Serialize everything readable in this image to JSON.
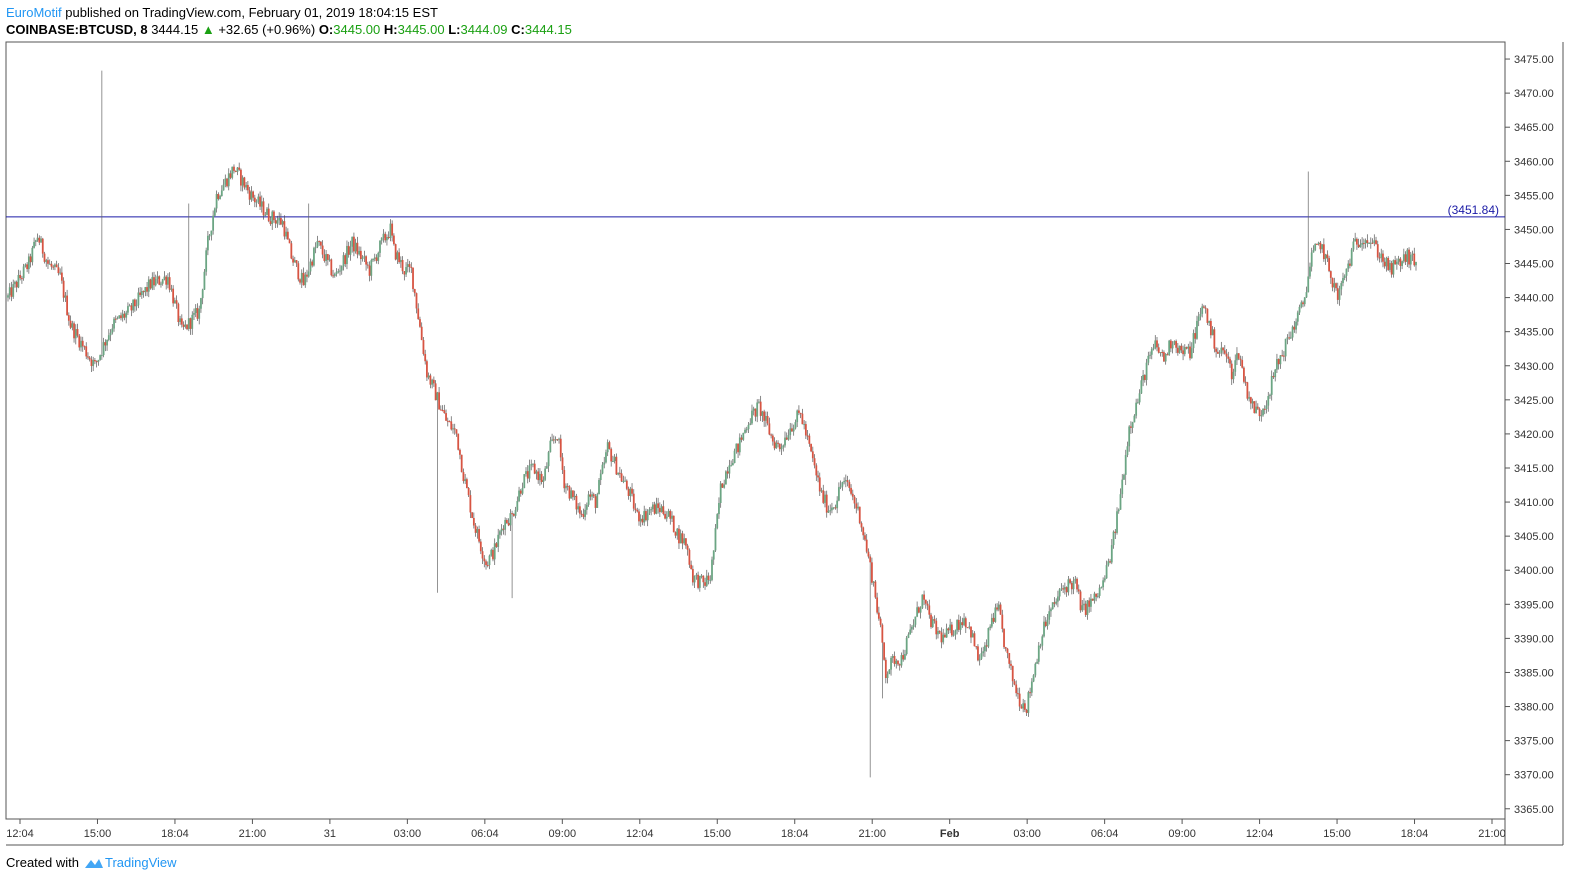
{
  "header": {
    "author": "EuroMotif",
    "published_text": "published on TradingView.com, February 01, 2019 18:04:15 EST",
    "symbol": "COINBASE:BTCUSD, 8",
    "last": "3444.15",
    "change": "+32.65 (+0.96%)",
    "o_label": "O:",
    "o_value": "3445.00",
    "h_label": "H:",
    "h_value": "3445.00",
    "l_label": "L:",
    "l_value": "3444.09",
    "c_label": "C:",
    "c_value": "3444.15"
  },
  "footer": {
    "created_with": "Created with",
    "logo_text": "TradingView"
  },
  "colors": {
    "up": "#6ba583",
    "down": "#d75442",
    "hline": "#1a1aa6",
    "grid_border": "#555555"
  },
  "chart_data": {
    "type": "candlestick",
    "y_ticks": [
      "3475.00",
      "3470.00",
      "3465.00",
      "3460.00",
      "3455.00",
      "3450.00",
      "3445.00",
      "3440.00",
      "3435.00",
      "3430.00",
      "3425.00",
      "3420.00",
      "3415.00",
      "3410.00",
      "3405.00",
      "3400.00",
      "3395.00",
      "3390.00",
      "3385.00",
      "3380.00",
      "3375.00",
      "3370.00",
      "3365.00"
    ],
    "x_ticks": [
      "12:04",
      "15:00",
      "18:04",
      "21:00",
      "31",
      "03:00",
      "06:04",
      "09:00",
      "12:04",
      "15:00",
      "18:04",
      "21:00",
      "Feb",
      "03:00",
      "06:04",
      "09:00",
      "12:04",
      "15:00",
      "18:04",
      "21:00"
    ],
    "x_tick_bold": "Feb",
    "ylim": [
      3363.5,
      3477.5
    ],
    "horizontal_line": {
      "value": 3451.84,
      "label": "(3451.84)"
    },
    "path": [
      [
        0,
        3440
      ],
      [
        12,
        3445
      ],
      [
        17,
        3449
      ],
      [
        23,
        3445
      ],
      [
        30,
        3443
      ],
      [
        36,
        3436
      ],
      [
        45,
        3432
      ],
      [
        50,
        3430
      ],
      [
        60,
        3436
      ],
      [
        70,
        3438
      ],
      [
        82,
        3442
      ],
      [
        92,
        3443
      ],
      [
        100,
        3435
      ],
      [
        110,
        3438
      ],
      [
        115,
        3448
      ],
      [
        120,
        3455
      ],
      [
        130,
        3459
      ],
      [
        140,
        3455
      ],
      [
        150,
        3452
      ],
      [
        158,
        3451
      ],
      [
        163,
        3446
      ],
      [
        170,
        3442
      ],
      [
        178,
        3448
      ],
      [
        188,
        3443
      ],
      [
        198,
        3448
      ],
      [
        208,
        3444
      ],
      [
        215,
        3448
      ],
      [
        220,
        3450
      ],
      [
        222,
        3447
      ],
      [
        228,
        3444
      ],
      [
        232,
        3444
      ],
      [
        241,
        3429
      ],
      [
        252,
        3422
      ],
      [
        258,
        3420
      ],
      [
        262,
        3414
      ],
      [
        268,
        3407
      ],
      [
        275,
        3401
      ],
      [
        280,
        3403
      ],
      [
        285,
        3407
      ],
      [
        290,
        3408
      ],
      [
        296,
        3413
      ],
      [
        302,
        3415
      ],
      [
        308,
        3413
      ],
      [
        312,
        3418
      ],
      [
        316,
        3420
      ],
      [
        320,
        3413
      ],
      [
        326,
        3410
      ],
      [
        330,
        3408
      ],
      [
        334,
        3411
      ],
      [
        338,
        3410
      ],
      [
        345,
        3418
      ],
      [
        352,
        3414
      ],
      [
        358,
        3411
      ],
      [
        362,
        3408
      ],
      [
        366,
        3408
      ],
      [
        370,
        3409
      ],
      [
        376,
        3409
      ],
      [
        380,
        3408
      ],
      [
        386,
        3405
      ],
      [
        390,
        3404
      ],
      [
        394,
        3399
      ],
      [
        400,
        3398
      ],
      [
        404,
        3399
      ],
      [
        406,
        3403
      ],
      [
        410,
        3412
      ],
      [
        415,
        3416
      ],
      [
        420,
        3418
      ],
      [
        426,
        3422
      ],
      [
        432,
        3424
      ],
      [
        437,
        3421
      ],
      [
        440,
        3419
      ],
      [
        444,
        3418
      ],
      [
        450,
        3421
      ],
      [
        456,
        3423
      ],
      [
        462,
        3417
      ],
      [
        468,
        3411
      ],
      [
        472,
        3409
      ],
      [
        476,
        3410
      ],
      [
        480,
        3413
      ],
      [
        484,
        3412
      ],
      [
        490,
        3408
      ],
      [
        494,
        3403
      ],
      [
        498,
        3398
      ],
      [
        502,
        3391
      ],
      [
        505,
        3385
      ],
      [
        510,
        3387
      ],
      [
        514,
        3387
      ],
      [
        518,
        3390
      ],
      [
        522,
        3393
      ],
      [
        526,
        3396
      ],
      [
        530,
        3393
      ],
      [
        534,
        3391
      ],
      [
        538,
        3390
      ],
      [
        542,
        3391
      ],
      [
        546,
        3392
      ],
      [
        550,
        3393
      ],
      [
        554,
        3391
      ],
      [
        558,
        3387
      ],
      [
        562,
        3388
      ],
      [
        566,
        3393
      ],
      [
        570,
        3394
      ],
      [
        574,
        3388
      ],
      [
        578,
        3384
      ],
      [
        582,
        3381
      ],
      [
        586,
        3380
      ],
      [
        590,
        3385
      ],
      [
        594,
        3390
      ],
      [
        598,
        3393
      ],
      [
        602,
        3395
      ],
      [
        606,
        3397
      ],
      [
        610,
        3398
      ],
      [
        614,
        3398
      ],
      [
        618,
        3394
      ],
      [
        622,
        3395
      ],
      [
        626,
        3396
      ],
      [
        630,
        3398
      ],
      [
        635,
        3403
      ],
      [
        640,
        3411
      ],
      [
        645,
        3421
      ],
      [
        650,
        3425
      ],
      [
        655,
        3430
      ],
      [
        660,
        3433
      ],
      [
        665,
        3431
      ],
      [
        670,
        3434
      ],
      [
        675,
        3432
      ],
      [
        680,
        3432
      ],
      [
        684,
        3436
      ],
      [
        688,
        3439
      ],
      [
        692,
        3435
      ],
      [
        696,
        3432
      ],
      [
        700,
        3432
      ],
      [
        704,
        3429
      ],
      [
        708,
        3432
      ],
      [
        712,
        3427
      ],
      [
        716,
        3424
      ],
      [
        720,
        3423
      ],
      [
        724,
        3425
      ],
      [
        730,
        3430
      ],
      [
        735,
        3433
      ],
      [
        740,
        3436
      ],
      [
        745,
        3439
      ],
      [
        750,
        3446
      ],
      [
        755,
        3448
      ],
      [
        760,
        3444
      ],
      [
        765,
        3440
      ],
      [
        770,
        3444
      ],
      [
        775,
        3448
      ],
      [
        780,
        3449
      ],
      [
        785,
        3448
      ],
      [
        790,
        3446
      ],
      [
        795,
        3444
      ],
      [
        800,
        3445
      ],
      [
        805,
        3446
      ],
      [
        810,
        3445
      ]
    ],
    "spikes": [
      [
        54,
        3473.3
      ],
      [
        104,
        3453.8
      ],
      [
        173,
        3453.8
      ],
      [
        247,
        3396.7
      ],
      [
        290,
        3395.9
      ],
      [
        496,
        3369.6
      ],
      [
        503,
        3381.2
      ],
      [
        643,
        3412.5
      ],
      [
        748,
        3458.5
      ]
    ]
  }
}
